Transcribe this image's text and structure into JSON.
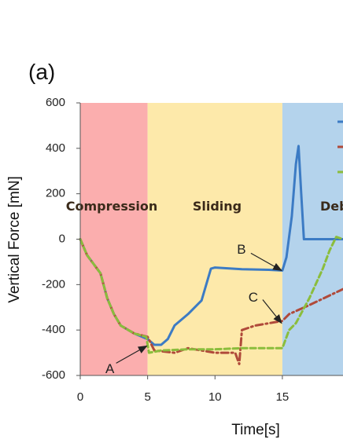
{
  "panel_label": "(a)",
  "chart_data": {
    "type": "line",
    "title": "",
    "xlabel": "Time[s]",
    "ylabel": "Vertical Force [mN]",
    "xlim": [
      0,
      19.5
    ],
    "ylim": [
      -600,
      600
    ],
    "xticks": [
      0,
      5,
      10,
      15
    ],
    "yticks": [
      -600,
      -400,
      -200,
      0,
      200,
      400,
      600
    ],
    "grid": false,
    "regions": [
      {
        "label": "Compression",
        "x0": 0,
        "x1": 5,
        "color": "#fbaeae"
      },
      {
        "label": "Sliding",
        "x0": 5,
        "x1": 15,
        "color": "#fde9aa"
      },
      {
        "label": "Deb",
        "x0": 15,
        "x1": 19.5,
        "color": "#b4d3ec"
      }
    ],
    "legend_swatches": [
      "#3c7bc4",
      "#b04a3a",
      "#8bbd3c"
    ],
    "series": [
      {
        "color": "#3c7bc4",
        "style": "solid",
        "x": [
          0,
          0.5,
          1,
          1.5,
          2,
          2.5,
          3,
          4,
          5,
          5.5,
          6,
          6.5,
          7,
          8,
          9,
          9.7,
          10,
          12,
          14,
          15,
          15.3,
          15.7,
          16,
          16.2,
          16.4,
          16.6,
          17,
          18,
          19.5
        ],
        "y": [
          0,
          -70,
          -110,
          -150,
          -260,
          -330,
          -380,
          -415,
          -440,
          -465,
          -465,
          -440,
          -380,
          -330,
          -270,
          -130,
          -125,
          -132,
          -135,
          -138,
          -80,
          100,
          330,
          410,
          200,
          0,
          0,
          0,
          0
        ]
      },
      {
        "color": "#b04a3a",
        "style": "dashdot",
        "x": [
          0,
          0.5,
          1,
          1.5,
          2,
          2.5,
          3,
          4,
          5,
          5.5,
          7,
          8,
          9,
          10,
          11.5,
          11.8,
          12,
          12.5,
          13,
          14,
          15,
          15.5,
          17,
          19.5
        ],
        "y": [
          0,
          -70,
          -110,
          -150,
          -260,
          -330,
          -380,
          -415,
          -430,
          -490,
          -500,
          -480,
          -490,
          -500,
          -500,
          -550,
          -400,
          -390,
          -380,
          -370,
          -360,
          -330,
          -290,
          -220
        ]
      },
      {
        "color": "#8bbd3c",
        "style": "dashed",
        "x": [
          0,
          0.5,
          1,
          1.5,
          2,
          2.5,
          3,
          4,
          4.9,
          5.1,
          6,
          8,
          10,
          12,
          14,
          15,
          15.5,
          16,
          17,
          18,
          18.5,
          19,
          19.5
        ],
        "y": [
          0,
          -70,
          -110,
          -150,
          -260,
          -330,
          -380,
          -415,
          -430,
          -500,
          -490,
          -485,
          -485,
          -480,
          -480,
          -480,
          -400,
          -370,
          -260,
          -130,
          -50,
          10,
          0
        ]
      }
    ],
    "annotations": [
      {
        "label": "A",
        "x": 5,
        "y": -470
      },
      {
        "label": "B",
        "x": 15,
        "y": -138
      },
      {
        "label": "C",
        "x": 15,
        "y": -370
      }
    ]
  }
}
